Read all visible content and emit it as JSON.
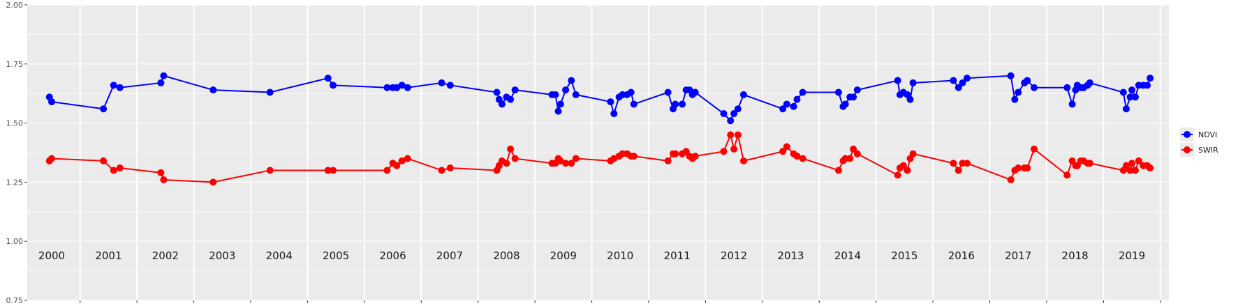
{
  "chart_data": {
    "type": "line",
    "title": "",
    "xlabel": "",
    "ylabel": "",
    "x_unit": "decimal year",
    "xlim": [
      1999.57,
      2019.65
    ],
    "ylim": [
      0.75,
      2.0
    ],
    "y_ticks": [
      "0.75",
      "1.00",
      "1.25",
      "1.50",
      "1.75",
      "2.00"
    ],
    "year_labels": [
      "2000",
      "2001",
      "2002",
      "2003",
      "2004",
      "2005",
      "2006",
      "2007",
      "2008",
      "2009",
      "2010",
      "2011",
      "2012",
      "2013",
      "2014",
      "2015",
      "2016",
      "2017",
      "2018",
      "2019"
    ],
    "year_boundaries": [
      2000,
      2001,
      2002,
      2003,
      2004,
      2005,
      2006,
      2007,
      2008,
      2009,
      2010,
      2011,
      2012,
      2013,
      2014,
      2015,
      2016,
      2017,
      2018,
      2019
    ],
    "grid": true,
    "legend_position": "right",
    "series": [
      {
        "name": "NDVI",
        "color": "#0000ff",
        "points": [
          [
            1999.96,
            1.61
          ],
          [
            2000.0,
            1.59
          ],
          [
            2000.91,
            1.56
          ],
          [
            2001.09,
            1.66
          ],
          [
            2001.2,
            1.65
          ],
          [
            2001.92,
            1.67
          ],
          [
            2001.97,
            1.7
          ],
          [
            2002.84,
            1.64
          ],
          [
            2003.84,
            1.63
          ],
          [
            2004.86,
            1.69
          ],
          [
            2004.95,
            1.66
          ],
          [
            2005.9,
            1.65
          ],
          [
            2006.0,
            1.65
          ],
          [
            2006.07,
            1.65
          ],
          [
            2006.16,
            1.66
          ],
          [
            2006.26,
            1.65
          ],
          [
            2006.86,
            1.67
          ],
          [
            2007.01,
            1.66
          ],
          [
            2007.83,
            1.63
          ],
          [
            2007.87,
            1.6
          ],
          [
            2007.92,
            1.58
          ],
          [
            2008.0,
            1.61
          ],
          [
            2008.07,
            1.6
          ],
          [
            2008.15,
            1.64
          ],
          [
            2008.8,
            1.62
          ],
          [
            2008.86,
            1.62
          ],
          [
            2008.91,
            1.55
          ],
          [
            2008.95,
            1.58
          ],
          [
            2009.04,
            1.64
          ],
          [
            2009.14,
            1.68
          ],
          [
            2009.22,
            1.62
          ],
          [
            2009.83,
            1.59
          ],
          [
            2009.89,
            1.54
          ],
          [
            2009.98,
            1.61
          ],
          [
            2010.04,
            1.62
          ],
          [
            2010.12,
            1.62
          ],
          [
            2010.19,
            1.63
          ],
          [
            2010.24,
            1.58
          ],
          [
            2010.84,
            1.63
          ],
          [
            2010.93,
            1.56
          ],
          [
            2010.97,
            1.58
          ],
          [
            2011.09,
            1.58
          ],
          [
            2011.16,
            1.64
          ],
          [
            2011.22,
            1.64
          ],
          [
            2011.27,
            1.62
          ],
          [
            2011.32,
            1.63
          ],
          [
            2011.82,
            1.54
          ],
          [
            2011.94,
            1.51
          ],
          [
            2012.0,
            1.54
          ],
          [
            2012.07,
            1.56
          ],
          [
            2012.17,
            1.62
          ],
          [
            2012.86,
            1.56
          ],
          [
            2012.93,
            1.58
          ],
          [
            2013.05,
            1.57
          ],
          [
            2013.11,
            1.6
          ],
          [
            2013.21,
            1.63
          ],
          [
            2013.84,
            1.63
          ],
          [
            2013.92,
            1.57
          ],
          [
            2013.96,
            1.58
          ],
          [
            2014.04,
            1.61
          ],
          [
            2014.1,
            1.61
          ],
          [
            2014.17,
            1.64
          ],
          [
            2014.88,
            1.68
          ],
          [
            2014.92,
            1.62
          ],
          [
            2014.98,
            1.63
          ],
          [
            2015.05,
            1.62
          ],
          [
            2015.1,
            1.6
          ],
          [
            2015.15,
            1.67
          ],
          [
            2015.86,
            1.68
          ],
          [
            2015.95,
            1.65
          ],
          [
            2016.02,
            1.67
          ],
          [
            2016.1,
            1.69
          ],
          [
            2016.87,
            1.7
          ],
          [
            2016.94,
            1.6
          ],
          [
            2017.0,
            1.63
          ],
          [
            2017.11,
            1.67
          ],
          [
            2017.16,
            1.68
          ],
          [
            2017.28,
            1.65
          ],
          [
            2017.86,
            1.65
          ],
          [
            2017.95,
            1.58
          ],
          [
            2018.01,
            1.64
          ],
          [
            2018.04,
            1.66
          ],
          [
            2018.1,
            1.65
          ],
          [
            2018.15,
            1.65
          ],
          [
            2018.22,
            1.66
          ],
          [
            2018.26,
            1.67
          ],
          [
            2018.85,
            1.63
          ],
          [
            2018.9,
            1.56
          ],
          [
            2018.97,
            1.61
          ],
          [
            2019.0,
            1.64
          ],
          [
            2019.06,
            1.61
          ],
          [
            2019.12,
            1.66
          ],
          [
            2019.2,
            1.66
          ],
          [
            2019.27,
            1.66
          ],
          [
            2019.32,
            1.69
          ]
        ]
      },
      {
        "name": "SWIR",
        "color": "#ff0000",
        "points": [
          [
            1999.96,
            1.34
          ],
          [
            2000.0,
            1.35
          ],
          [
            2000.91,
            1.34
          ],
          [
            2001.09,
            1.3
          ],
          [
            2001.2,
            1.31
          ],
          [
            2001.92,
            1.29
          ],
          [
            2001.97,
            1.26
          ],
          [
            2002.84,
            1.25
          ],
          [
            2003.84,
            1.3
          ],
          [
            2004.86,
            1.3
          ],
          [
            2004.95,
            1.3
          ],
          [
            2005.9,
            1.3
          ],
          [
            2006.0,
            1.33
          ],
          [
            2006.07,
            1.32
          ],
          [
            2006.16,
            1.34
          ],
          [
            2006.26,
            1.35
          ],
          [
            2006.86,
            1.3
          ],
          [
            2007.01,
            1.31
          ],
          [
            2007.83,
            1.3
          ],
          [
            2007.87,
            1.32
          ],
          [
            2007.92,
            1.34
          ],
          [
            2008.0,
            1.33
          ],
          [
            2008.07,
            1.39
          ],
          [
            2008.15,
            1.35
          ],
          [
            2008.8,
            1.33
          ],
          [
            2008.86,
            1.33
          ],
          [
            2008.91,
            1.35
          ],
          [
            2008.95,
            1.34
          ],
          [
            2009.04,
            1.33
          ],
          [
            2009.14,
            1.33
          ],
          [
            2009.22,
            1.35
          ],
          [
            2009.83,
            1.34
          ],
          [
            2009.89,
            1.35
          ],
          [
            2009.98,
            1.36
          ],
          [
            2010.04,
            1.37
          ],
          [
            2010.12,
            1.37
          ],
          [
            2010.19,
            1.36
          ],
          [
            2010.24,
            1.36
          ],
          [
            2010.84,
            1.34
          ],
          [
            2010.93,
            1.37
          ],
          [
            2010.97,
            1.37
          ],
          [
            2011.09,
            1.37
          ],
          [
            2011.16,
            1.38
          ],
          [
            2011.22,
            1.36
          ],
          [
            2011.27,
            1.35
          ],
          [
            2011.32,
            1.36
          ],
          [
            2011.82,
            1.38
          ],
          [
            2011.94,
            1.45
          ],
          [
            2012.0,
            1.39
          ],
          [
            2012.07,
            1.45
          ],
          [
            2012.17,
            1.34
          ],
          [
            2012.86,
            1.38
          ],
          [
            2012.93,
            1.4
          ],
          [
            2013.05,
            1.37
          ],
          [
            2013.11,
            1.36
          ],
          [
            2013.21,
            1.35
          ],
          [
            2013.84,
            1.3
          ],
          [
            2013.92,
            1.34
          ],
          [
            2013.96,
            1.35
          ],
          [
            2014.04,
            1.35
          ],
          [
            2014.1,
            1.39
          ],
          [
            2014.17,
            1.37
          ],
          [
            2014.88,
            1.28
          ],
          [
            2014.92,
            1.31
          ],
          [
            2014.98,
            1.32
          ],
          [
            2015.05,
            1.3
          ],
          [
            2015.1,
            1.35
          ],
          [
            2015.15,
            1.37
          ],
          [
            2015.86,
            1.33
          ],
          [
            2015.95,
            1.3
          ],
          [
            2016.02,
            1.33
          ],
          [
            2016.1,
            1.33
          ],
          [
            2016.87,
            1.26
          ],
          [
            2016.94,
            1.3
          ],
          [
            2017.0,
            1.31
          ],
          [
            2017.11,
            1.31
          ],
          [
            2017.16,
            1.31
          ],
          [
            2017.28,
            1.39
          ],
          [
            2017.86,
            1.28
          ],
          [
            2017.95,
            1.34
          ],
          [
            2018.01,
            1.32
          ],
          [
            2018.04,
            1.32
          ],
          [
            2018.1,
            1.34
          ],
          [
            2018.15,
            1.34
          ],
          [
            2018.22,
            1.33
          ],
          [
            2018.26,
            1.33
          ],
          [
            2018.85,
            1.3
          ],
          [
            2018.9,
            1.32
          ],
          [
            2018.97,
            1.3
          ],
          [
            2019.0,
            1.33
          ],
          [
            2019.06,
            1.3
          ],
          [
            2019.12,
            1.34
          ],
          [
            2019.2,
            1.32
          ],
          [
            2019.27,
            1.32
          ],
          [
            2019.32,
            1.31
          ]
        ]
      }
    ]
  }
}
